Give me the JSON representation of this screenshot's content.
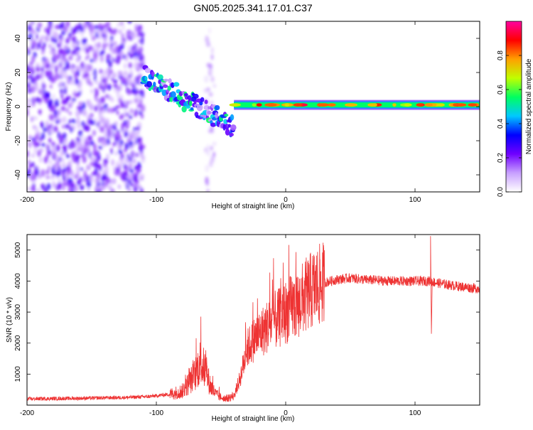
{
  "title": "GN05.2025.341.17.01.C37",
  "chart_data": [
    {
      "type": "heatmap",
      "name": "spectrogram",
      "xlabel": "Height of straight line (km)",
      "ylabel": "Frequency (Hz)",
      "xlim": [
        -200,
        150
      ],
      "ylim": [
        -50,
        50
      ],
      "xticks": [
        -200,
        -100,
        0,
        100
      ],
      "yticks": [
        -40,
        -20,
        0,
        20,
        40
      ],
      "colorbar": {
        "label": "Normalized spectral amplitude",
        "range": [
          0,
          1
        ],
        "ticks": [
          0.0,
          0.2,
          0.4,
          0.6,
          0.8
        ],
        "colors": [
          "#ffffff",
          "#c8a0ff",
          "#7000ff",
          "#0000ff",
          "#00c8ff",
          "#00ff60",
          "#c0ff00",
          "#ffa000",
          "#ff0000",
          "#ff00a0"
        ]
      },
      "features": [
        {
          "label": "noise",
          "x_range": [
            -200,
            -110
          ],
          "freq_range": [
            -50,
            50
          ],
          "amplitude": 0.1
        },
        {
          "label": "noise",
          "x_range": [
            -62,
            -55
          ],
          "freq_range": [
            -50,
            50
          ],
          "amplitude": 0.05
        },
        {
          "label": "signal",
          "x_range": [
            -110,
            -40
          ],
          "freq_start": 18,
          "freq_end": -12,
          "amplitude": 0.3
        },
        {
          "label": "signal",
          "x_range": [
            -40,
            150
          ],
          "freq": 1,
          "amplitude": 0.75
        }
      ]
    },
    {
      "type": "line",
      "name": "snr",
      "xlabel": "Height of straight line (km)",
      "ylabel": "SNR (10 * v/v)",
      "xlim": [
        -200,
        150
      ],
      "ylim": [
        0,
        5500
      ],
      "xticks": [
        -200,
        -100,
        0,
        100
      ],
      "yticks": [
        1000,
        2000,
        3000,
        4000,
        5000
      ],
      "color": "#ee3333",
      "series": [
        {
          "name": "SNR",
          "x": [
            -200,
            -160,
            -120,
            -105,
            -90,
            -80,
            -75,
            -70,
            -66,
            -62,
            -58,
            -54,
            -50,
            -45,
            -40,
            -35,
            -30,
            -25,
            -20,
            -15,
            -10,
            -5,
            0,
            10,
            20,
            30,
            40,
            50,
            60,
            80,
            100,
            108,
            112,
            116,
            130,
            150
          ],
          "y": [
            200,
            220,
            250,
            280,
            350,
            450,
            700,
            1000,
            1400,
            1100,
            600,
            350,
            250,
            220,
            300,
            900,
            1800,
            2100,
            2300,
            2500,
            2700,
            2800,
            3000,
            3300,
            3700,
            3950,
            4050,
            4100,
            4050,
            4000,
            4000,
            4000,
            4000,
            3950,
            3850,
            3750
          ]
        }
      ],
      "annotations": [
        {
          "label": "spike",
          "x": 112,
          "y_max": 5450,
          "y_min": 2300
        }
      ]
    }
  ]
}
